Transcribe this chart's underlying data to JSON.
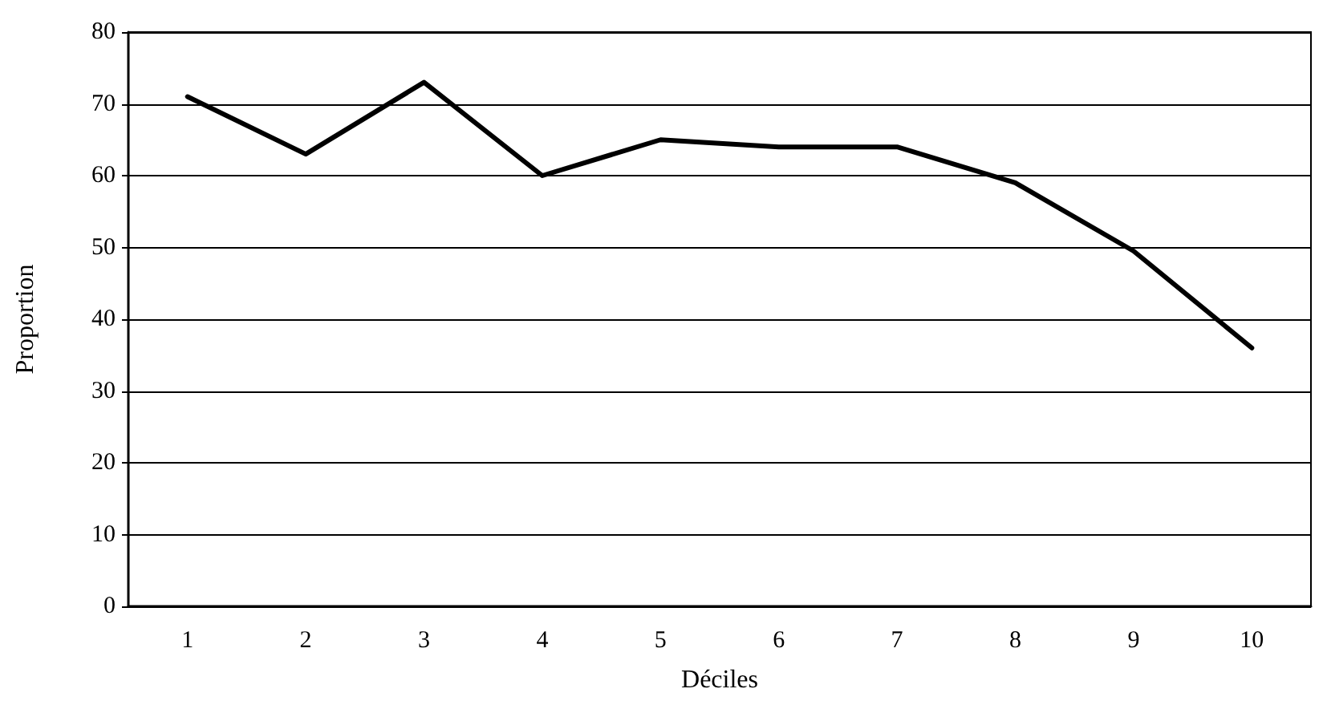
{
  "chart_data": {
    "type": "line",
    "xlabel": "Déciles",
    "ylabel": "Proportion",
    "categories": [
      "1",
      "2",
      "3",
      "4",
      "5",
      "6",
      "7",
      "8",
      "9",
      "10"
    ],
    "series": [
      {
        "color": "#000000",
        "values": [
          71,
          63,
          73,
          60,
          65,
          64,
          64,
          59,
          49.5,
          36
        ]
      }
    ],
    "ylim": [
      0,
      80
    ],
    "yticks": [
      0,
      10,
      20,
      30,
      40,
      50,
      60,
      70,
      80
    ],
    "grid": "y",
    "marker": "none",
    "line_style": "solid"
  }
}
